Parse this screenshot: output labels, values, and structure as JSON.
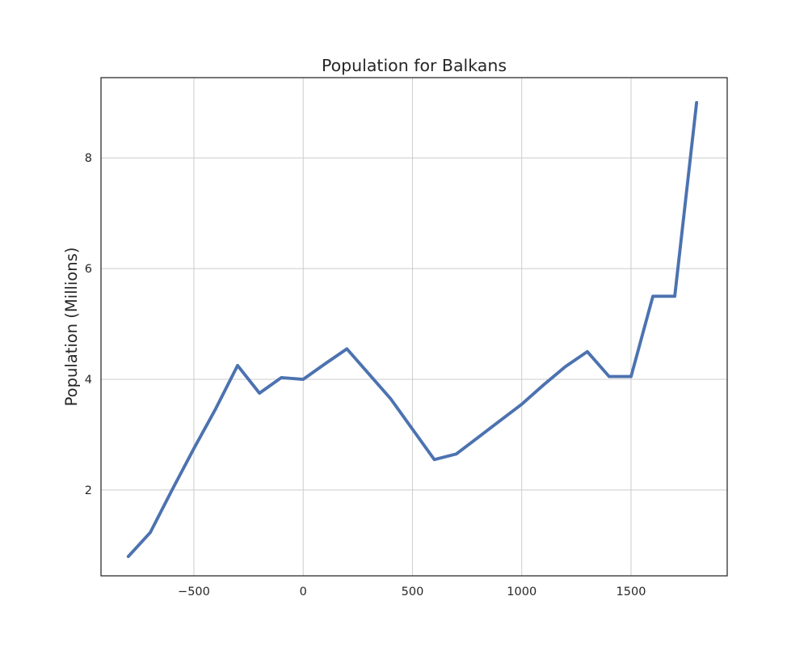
{
  "chart_data": {
    "type": "line",
    "title": "Population for Balkans",
    "xlabel": "",
    "ylabel": "Population (Millions)",
    "xlim": [
      -925,
      1940
    ],
    "ylim": [
      0.45,
      9.45
    ],
    "x_ticks": [
      -500,
      0,
      500,
      1000,
      1500
    ],
    "x_tick_labels": [
      "−500",
      "0",
      "500",
      "1000",
      "1500"
    ],
    "y_ticks": [
      2,
      4,
      6,
      8
    ],
    "y_tick_labels": [
      "2",
      "4",
      "6",
      "8"
    ],
    "grid": true,
    "legend": "none",
    "series": [
      {
        "x": [
          -800,
          -700,
          -600,
          -500,
          -400,
          -300,
          -200,
          -100,
          0,
          100,
          200,
          300,
          400,
          500,
          600,
          700,
          800,
          900,
          1000,
          1100,
          1200,
          1300,
          1400,
          1500,
          1600,
          1700,
          1800
        ],
        "values": [
          0.8,
          1.23,
          2.0,
          2.75,
          3.47,
          4.25,
          3.75,
          4.03,
          4.0,
          4.28,
          4.55,
          4.1,
          3.65,
          3.1,
          2.55,
          2.65,
          2.95,
          3.25,
          3.55,
          3.9,
          4.23,
          4.5,
          4.05,
          4.05,
          5.5,
          5.5,
          9.0
        ]
      }
    ]
  },
  "colors": {
    "line": "#4c72b0",
    "grid": "#cccccc",
    "frame": "#262626",
    "text": "#262626"
  }
}
